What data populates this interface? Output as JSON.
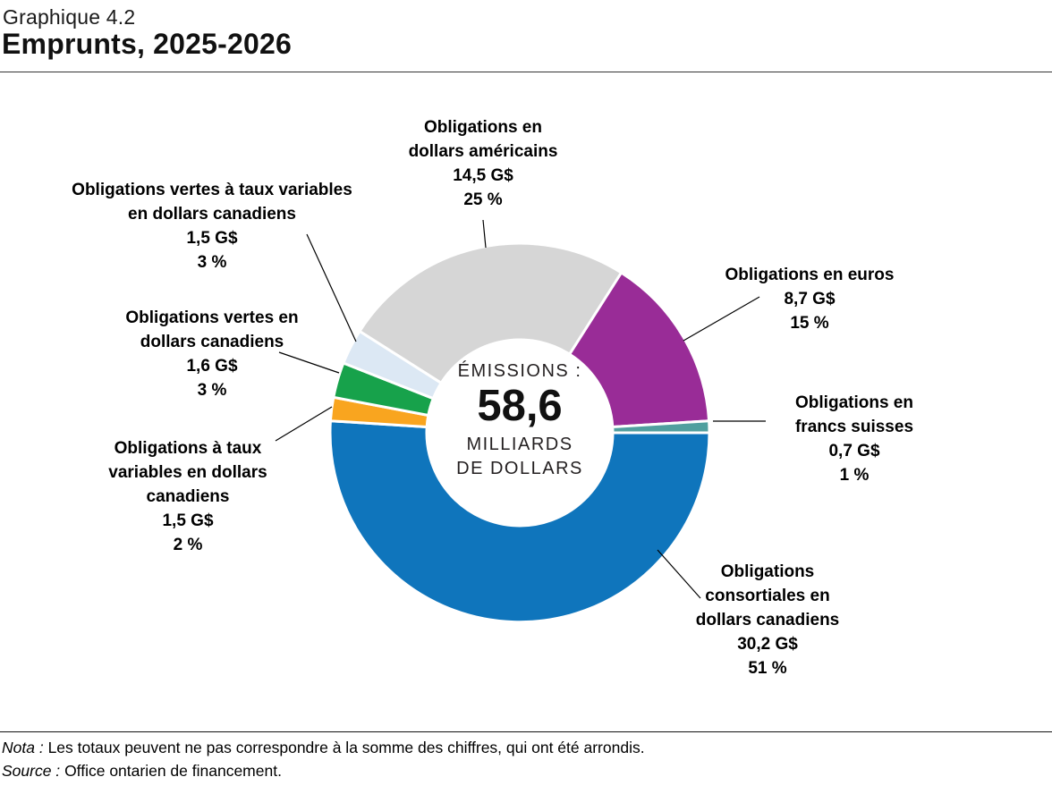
{
  "header": {
    "kicker": "Graphique 4.2",
    "title": "Emprunts, 2025-2026"
  },
  "chart_data": {
    "type": "pie",
    "subtype": "donut",
    "title": "Emprunts, 2025-2026",
    "total_value_billions": 58.6,
    "center_label": {
      "prefix": "ÉMISSIONS :",
      "value": "58,6",
      "unit_lines": [
        "MILLIARDS",
        "DE DOLLARS"
      ]
    },
    "legend_position": "callouts-around-donut",
    "segments": [
      {
        "id": "consortiales-dollars-canadiens",
        "label_lines": [
          "Obligations",
          "consortiales en",
          "dollars canadiens"
        ],
        "amount": "30,2 G$",
        "percent_text": "51 %",
        "value_billions": 30.2,
        "percent": 51,
        "color": "#0F75BC"
      },
      {
        "id": "taux-variables-dollars-canadiens",
        "label_lines": [
          "Obligations à taux",
          "variables en dollars",
          "canadiens"
        ],
        "amount": "1,5 G$",
        "percent_text": "2 %",
        "value_billions": 1.5,
        "percent": 2,
        "color": "#F9A51F"
      },
      {
        "id": "vertes-dollars-canadiens",
        "label_lines": [
          "Obligations vertes en",
          "dollars canadiens"
        ],
        "amount": "1,6 G$",
        "percent_text": "3 %",
        "value_billions": 1.6,
        "percent": 3,
        "color": "#17A24B"
      },
      {
        "id": "vertes-taux-variables-dollars-canadiens",
        "label_lines": [
          "Obligations vertes à taux variables",
          "en dollars canadiens"
        ],
        "amount": "1,5 G$",
        "percent_text": "3 %",
        "value_billions": 1.5,
        "percent": 3,
        "color": "#DCE8F4"
      },
      {
        "id": "dollars-americains",
        "label_lines": [
          "Obligations en",
          "dollars américains"
        ],
        "amount": "14,5 G$",
        "percent_text": "25 %",
        "value_billions": 14.5,
        "percent": 25,
        "color": "#D6D6D6"
      },
      {
        "id": "euros",
        "label_lines": [
          "Obligations en euros"
        ],
        "amount": "8,7 G$",
        "percent_text": "15 %",
        "value_billions": 8.7,
        "percent": 15,
        "color": "#992C97"
      },
      {
        "id": "francs-suisses",
        "label_lines": [
          "Obligations en",
          "francs suisses"
        ],
        "amount": "0,7 G$",
        "percent_text": "1 %",
        "value_billions": 0.7,
        "percent": 1,
        "color": "#509F9F"
      }
    ]
  },
  "footer": {
    "nota_label": "Nota :",
    "nota_text": "Les totaux peuvent ne pas correspondre à la somme des chiffres, qui ont été arrondis.",
    "source_label": "Source :",
    "source_text": "Office ontarien de financement."
  }
}
